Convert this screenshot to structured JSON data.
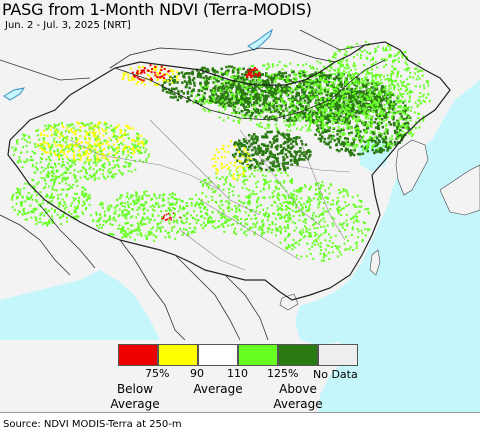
{
  "title": "PASG from 1-Month NDVI (Terra-MODIS)",
  "subtitle": "Jun. 2 - Jul. 3, 2025 [NRT]",
  "legend": {
    "colors": [
      "#ee0000",
      "#ffff00",
      "#ffffff",
      "#66ff22",
      "#2a7a12",
      "#eeeeee"
    ],
    "ticks": [
      "75%",
      "90",
      "110",
      "125%"
    ],
    "no_data": "No Data",
    "below": [
      "Below",
      "Average"
    ],
    "average": "Average",
    "above": [
      "Above",
      "Average"
    ]
  },
  "source": "Source: NDVI MODIS-Terra at 250-m",
  "map_colors": {
    "land": "#f3f3f3",
    "ocean": "#c5f6fb",
    "dark_green": "#2a7a12",
    "light_green": "#66ff22",
    "yellow": "#ffff00",
    "red": "#ee0000"
  }
}
